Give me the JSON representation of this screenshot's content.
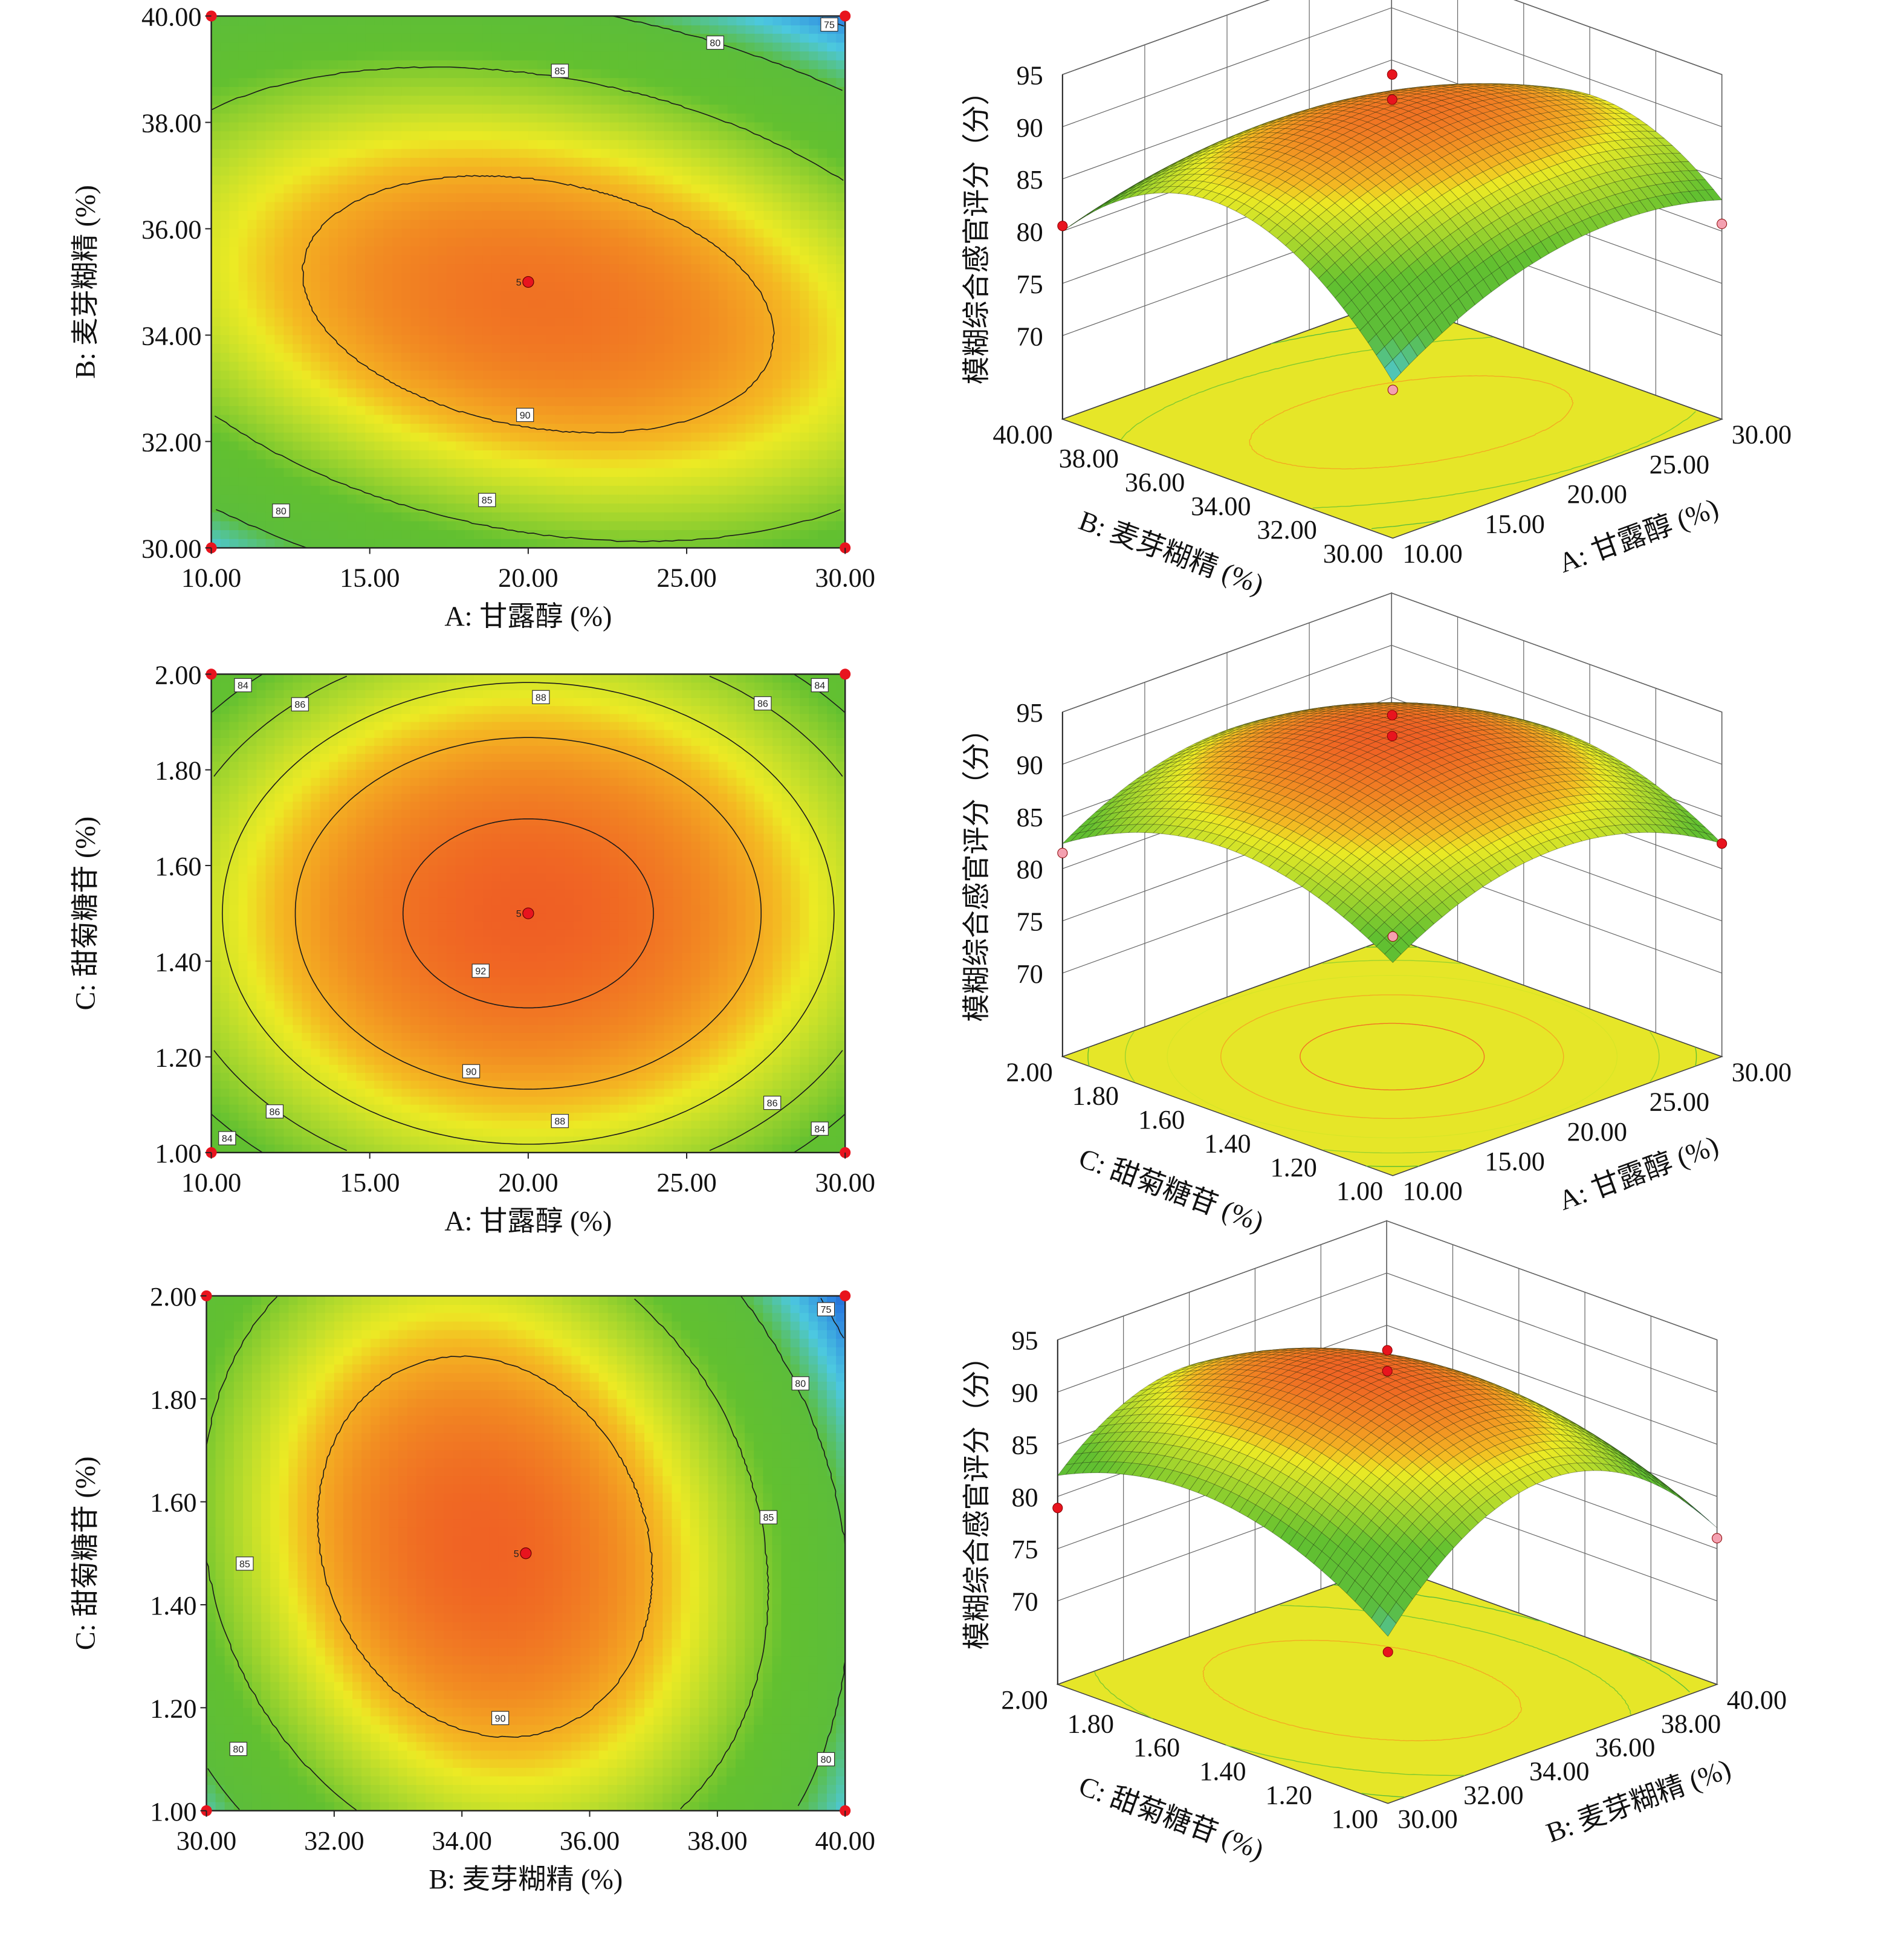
{
  "colors": {
    "colormap": [
      "#1a2fa0",
      "#2a7fe0",
      "#4cc8e0",
      "#5cbd3a",
      "#62c030",
      "#b8dc2c",
      "#ecea24",
      "#f4b822",
      "#f28c22",
      "#ef5a24"
    ],
    "design_point": "#e8141e",
    "design_point_below": "#f4a0b0",
    "floor": "#e6e628",
    "contour_line": "#1a1a1a"
  },
  "chart_data": [
    {
      "type": "contour",
      "xlabel": "A: 甘露醇 (%)",
      "ylabel": "B: 麦芽糊精 (%)",
      "xlim": [
        10,
        30
      ],
      "ylim": [
        30,
        40
      ],
      "xticks": [
        "10.00",
        "15.00",
        "20.00",
        "25.00",
        "30.00"
      ],
      "yticks": [
        "30.00",
        "32.00",
        "34.00",
        "36.00",
        "38.00",
        "40.00"
      ],
      "contour_levels": [
        75,
        80,
        85,
        90
      ],
      "contour_labels": [
        {
          "value": "75",
          "x": 29.5,
          "y": 39.84
        },
        {
          "value": "80",
          "x": 25.9,
          "y": 39.5
        },
        {
          "value": "85",
          "x": 21.0,
          "y": 38.97
        },
        {
          "value": "90",
          "x": 19.9,
          "y": 32.5
        },
        {
          "value": "85",
          "x": 18.7,
          "y": 30.9
        },
        {
          "value": "80",
          "x": 12.2,
          "y": 30.7
        }
      ],
      "design_points": [
        {
          "x": 10,
          "y": 30
        },
        {
          "x": 10,
          "y": 40
        },
        {
          "x": 30,
          "y": 30
        },
        {
          "x": 30,
          "y": 40
        }
      ],
      "center_point": {
        "x": 20,
        "y": 35,
        "label": "5"
      }
    },
    {
      "type": "contour",
      "xlabel": "A: 甘露醇 (%)",
      "ylabel": "C: 甜菊糖苷 (%)",
      "xlim": [
        10,
        30
      ],
      "ylim": [
        1.0,
        2.0
      ],
      "xticks": [
        "10.00",
        "15.00",
        "20.00",
        "25.00",
        "30.00"
      ],
      "yticks": [
        "1.00",
        "1.20",
        "1.40",
        "1.60",
        "1.80",
        "2.00"
      ],
      "contour_levels": [
        84,
        86,
        88,
        90,
        92
      ],
      "contour_labels": [
        {
          "value": "84",
          "x": 11.0,
          "y": 1.977
        },
        {
          "value": "86",
          "x": 12.8,
          "y": 1.937
        },
        {
          "value": "88",
          "x": 20.4,
          "y": 1.952
        },
        {
          "value": "86",
          "x": 27.4,
          "y": 1.939
        },
        {
          "value": "84",
          "x": 29.2,
          "y": 1.977
        },
        {
          "value": "92",
          "x": 18.5,
          "y": 1.38
        },
        {
          "value": "90",
          "x": 18.2,
          "y": 1.17
        },
        {
          "value": "86",
          "x": 12.0,
          "y": 1.086
        },
        {
          "value": "88",
          "x": 21.0,
          "y": 1.066
        },
        {
          "value": "86",
          "x": 27.7,
          "y": 1.104
        },
        {
          "value": "84",
          "x": 10.5,
          "y": 1.03
        },
        {
          "value": "84",
          "x": 29.2,
          "y": 1.05
        }
      ],
      "design_points": [
        {
          "x": 10,
          "y": 1.0
        },
        {
          "x": 10,
          "y": 2.0
        },
        {
          "x": 30,
          "y": 1.0
        },
        {
          "x": 30,
          "y": 2.0
        }
      ],
      "center_point": {
        "x": 20,
        "y": 1.5,
        "label": "5"
      }
    },
    {
      "type": "contour",
      "xlabel": "B: 麦芽糊精 (%)",
      "ylabel": "C: 甜菊糖苷 (%)",
      "xlim": [
        30,
        40
      ],
      "ylim": [
        1.0,
        2.0
      ],
      "xticks": [
        "30.00",
        "32.00",
        "34.00",
        "36.00",
        "38.00",
        "40.00"
      ],
      "yticks": [
        "1.00",
        "1.20",
        "1.40",
        "1.60",
        "1.80",
        "2.00"
      ],
      "contour_levels": [
        75,
        80,
        85,
        90
      ],
      "contour_labels": [
        {
          "value": "75",
          "x": 39.7,
          "y": 1.974
        },
        {
          "value": "80",
          "x": 39.3,
          "y": 1.83
        },
        {
          "value": "85",
          "x": 38.8,
          "y": 1.57
        },
        {
          "value": "85",
          "x": 30.6,
          "y": 1.48
        },
        {
          "value": "90",
          "x": 34.6,
          "y": 1.18
        },
        {
          "value": "80",
          "x": 30.5,
          "y": 1.12
        },
        {
          "value": "80",
          "x": 39.7,
          "y": 1.1
        }
      ],
      "design_points": [
        {
          "x": 30,
          "y": 1.0
        },
        {
          "x": 30,
          "y": 2.0
        },
        {
          "x": 40,
          "y": 1.0
        },
        {
          "x": 40,
          "y": 2.0
        }
      ],
      "center_point": {
        "x": 35,
        "y": 1.5,
        "label": "5"
      }
    },
    {
      "type": "surface",
      "zlabel": "模糊综合感官评分（分）",
      "xlabel": "A: 甘露醇 (%)",
      "ylabel": "B: 麦芽糊精 (%)",
      "xlim": [
        10,
        30
      ],
      "ylim": [
        30,
        40
      ],
      "zlim": [
        70,
        95
      ],
      "xticks": [
        "10.00",
        "15.00",
        "20.00",
        "25.00",
        "30.00"
      ],
      "yticks": [
        "30.00",
        "32.00",
        "34.00",
        "36.00",
        "38.00",
        "40.00"
      ],
      "zticks": [
        "70",
        "75",
        "80",
        "85",
        "90",
        "95"
      ],
      "design_points": [
        {
          "x": 20,
          "y": 35,
          "z": 95.0,
          "above": true
        },
        {
          "x": 20,
          "y": 35,
          "z": 92.6,
          "above": true
        },
        {
          "x": 10,
          "y": 40,
          "z": 80.5,
          "above": true
        },
        {
          "x": 30,
          "y": 30,
          "z": 80.7,
          "above": false
        },
        {
          "x": 10,
          "y": 30,
          "z": 76.2,
          "above": false
        }
      ]
    },
    {
      "type": "surface",
      "zlabel": "模糊综合感官评分（分）",
      "xlabel": "A: 甘露醇 (%)",
      "ylabel": "C: 甜菊糖苷 (%)",
      "xlim": [
        10,
        30
      ],
      "ylim": [
        1.0,
        2.0
      ],
      "zlim": [
        70,
        95
      ],
      "xticks": [
        "10.00",
        "15.00",
        "20.00",
        "25.00",
        "30.00"
      ],
      "yticks": [
        "1.00",
        "1.20",
        "1.40",
        "1.60",
        "1.80",
        "2.00"
      ],
      "zticks": [
        "70",
        "75",
        "80",
        "85",
        "90",
        "95"
      ],
      "design_points": [
        {
          "x": 20,
          "y": 1.5,
          "z": 94.7,
          "above": true
        },
        {
          "x": 20,
          "y": 1.5,
          "z": 92.7,
          "above": true
        },
        {
          "x": 10,
          "y": 2.0,
          "z": 81.5,
          "above": false
        },
        {
          "x": 30,
          "y": 1.0,
          "z": 82.4,
          "above": true
        },
        {
          "x": 10,
          "y": 1.0,
          "z": 84.9,
          "above": false
        }
      ]
    },
    {
      "type": "surface",
      "zlabel": "模糊综合感官评分（分）",
      "xlabel": "B: 麦芽糊精 (%)",
      "ylabel": "C: 甜菊糖苷 (%)",
      "xlim": [
        30,
        40
      ],
      "ylim": [
        1.0,
        2.0
      ],
      "zlim": [
        70,
        95
      ],
      "xticks": [
        "30.00",
        "32.00",
        "34.00",
        "36.00",
        "38.00",
        "40.00"
      ],
      "yticks": [
        "1.00",
        "1.20",
        "1.40",
        "1.60",
        "1.80",
        "2.00"
      ],
      "zticks": [
        "70",
        "75",
        "80",
        "85",
        "90",
        "95"
      ],
      "design_points": [
        {
          "x": 35,
          "y": 1.5,
          "z": 94.0,
          "above": true
        },
        {
          "x": 35,
          "y": 1.5,
          "z": 92.0,
          "above": true
        },
        {
          "x": 30,
          "y": 2.0,
          "z": 78.9,
          "above": true
        },
        {
          "x": 40,
          "y": 1.0,
          "z": 76.0,
          "above": false
        },
        {
          "x": 30,
          "y": 1.0,
          "z": 76.5,
          "above": true
        }
      ]
    }
  ]
}
